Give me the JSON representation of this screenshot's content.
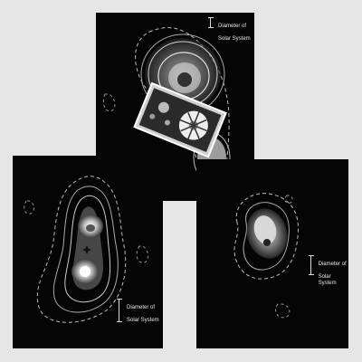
{
  "scale_label_line1": "Diameter of",
  "scale_label_line2": "Solar System",
  "colors": {
    "background": "#e6e6e6",
    "panel": "#050505",
    "contour": "#bdbdbd",
    "core": "#ffffff"
  }
}
